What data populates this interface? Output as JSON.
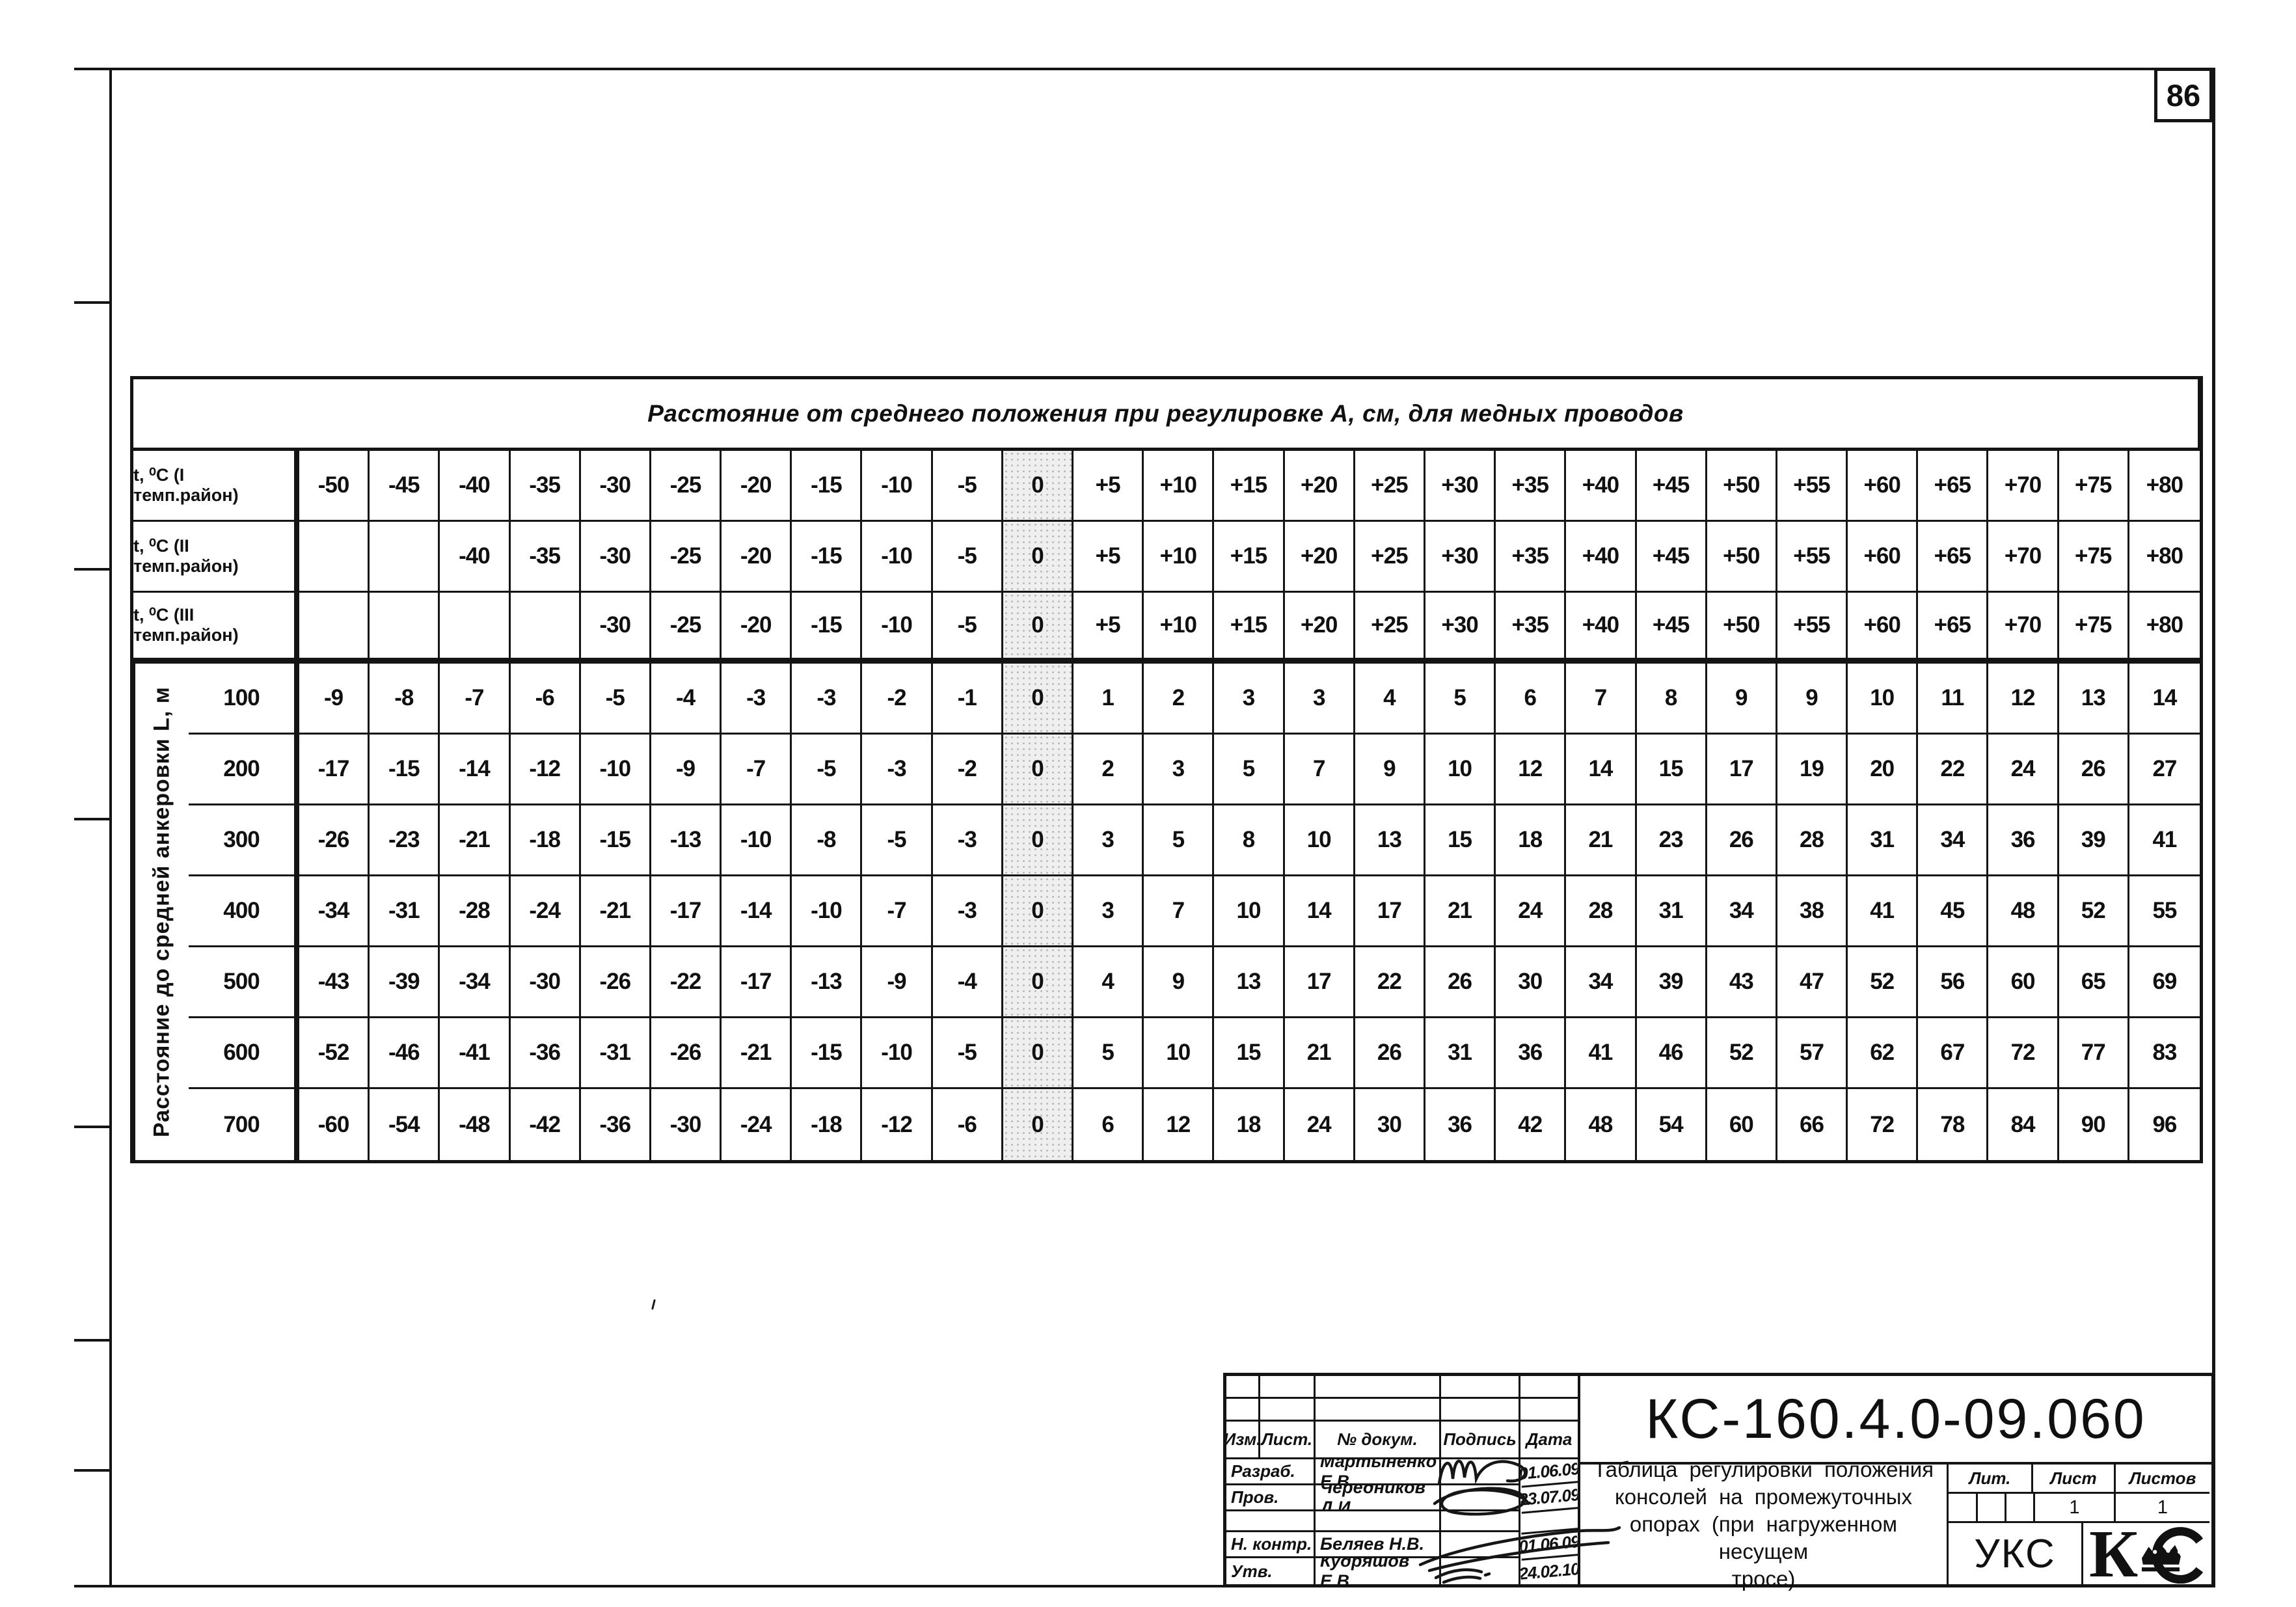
{
  "page": {
    "number": "86"
  },
  "table": {
    "title": "Расстояние от среднего положения при регулировке А, см, для медных проводов",
    "row_axis_label": "Расстояние до средней анкеровки L, м",
    "zero_column_index": 10,
    "header_rows": [
      {
        "label": "t, ⁰С (I темп.район)",
        "values": [
          "-50",
          "-45",
          "-40",
          "-35",
          "-30",
          "-25",
          "-20",
          "-15",
          "-10",
          "-5",
          "0",
          "+5",
          "+10",
          "+15",
          "+20",
          "+25",
          "+30",
          "+35",
          "+40",
          "+45",
          "+50",
          "+55",
          "+60",
          "+65",
          "+70",
          "+75",
          "+80"
        ]
      },
      {
        "label": "t, ⁰С (II темп.район)",
        "values": [
          "",
          "",
          "-40",
          "-35",
          "-30",
          "-25",
          "-20",
          "-15",
          "-10",
          "-5",
          "0",
          "+5",
          "+10",
          "+15",
          "+20",
          "+25",
          "+30",
          "+35",
          "+40",
          "+45",
          "+50",
          "+55",
          "+60",
          "+65",
          "+70",
          "+75",
          "+80"
        ]
      },
      {
        "label": "t, ⁰С (III темп.район)",
        "values": [
          "",
          "",
          "",
          "",
          "-30",
          "-25",
          "-20",
          "-15",
          "-10",
          "-5",
          "0",
          "+5",
          "+10",
          "+15",
          "+20",
          "+25",
          "+30",
          "+35",
          "+40",
          "+45",
          "+50",
          "+55",
          "+60",
          "+65",
          "+70",
          "+75",
          "+80"
        ]
      }
    ],
    "data_rows": [
      {
        "L": "100",
        "values": [
          "-9",
          "-8",
          "-7",
          "-6",
          "-5",
          "-4",
          "-3",
          "-3",
          "-2",
          "-1",
          "0",
          "1",
          "2",
          "3",
          "3",
          "4",
          "5",
          "6",
          "7",
          "8",
          "9",
          "9",
          "10",
          "11",
          "12",
          "13",
          "14"
        ]
      },
      {
        "L": "200",
        "values": [
          "-17",
          "-15",
          "-14",
          "-12",
          "-10",
          "-9",
          "-7",
          "-5",
          "-3",
          "-2",
          "0",
          "2",
          "3",
          "5",
          "7",
          "9",
          "10",
          "12",
          "14",
          "15",
          "17",
          "19",
          "20",
          "22",
          "24",
          "26",
          "27"
        ]
      },
      {
        "L": "300",
        "values": [
          "-26",
          "-23",
          "-21",
          "-18",
          "-15",
          "-13",
          "-10",
          "-8",
          "-5",
          "-3",
          "0",
          "3",
          "5",
          "8",
          "10",
          "13",
          "15",
          "18",
          "21",
          "23",
          "26",
          "28",
          "31",
          "34",
          "36",
          "39",
          "41"
        ]
      },
      {
        "L": "400",
        "values": [
          "-34",
          "-31",
          "-28",
          "-24",
          "-21",
          "-17",
          "-14",
          "-10",
          "-7",
          "-3",
          "0",
          "3",
          "7",
          "10",
          "14",
          "17",
          "21",
          "24",
          "28",
          "31",
          "34",
          "38",
          "41",
          "45",
          "48",
          "52",
          "55"
        ]
      },
      {
        "L": "500",
        "values": [
          "-43",
          "-39",
          "-34",
          "-30",
          "-26",
          "-22",
          "-17",
          "-13",
          "-9",
          "-4",
          "0",
          "4",
          "9",
          "13",
          "17",
          "22",
          "26",
          "30",
          "34",
          "39",
          "43",
          "47",
          "52",
          "56",
          "60",
          "65",
          "69"
        ]
      },
      {
        "L": "600",
        "values": [
          "-52",
          "-46",
          "-41",
          "-36",
          "-31",
          "-26",
          "-21",
          "-15",
          "-10",
          "-5",
          "0",
          "5",
          "10",
          "15",
          "21",
          "26",
          "31",
          "36",
          "41",
          "46",
          "52",
          "57",
          "62",
          "67",
          "72",
          "77",
          "83"
        ]
      },
      {
        "L": "700",
        "values": [
          "-60",
          "-54",
          "-48",
          "-42",
          "-36",
          "-30",
          "-24",
          "-18",
          "-12",
          "-6",
          "0",
          "6",
          "12",
          "18",
          "24",
          "30",
          "36",
          "42",
          "48",
          "54",
          "60",
          "66",
          "72",
          "78",
          "84",
          "90",
          "96"
        ]
      }
    ]
  },
  "title_block": {
    "doc_number": "КС-160.4.0-09.060",
    "title_lines": [
      "Таблица регулировки положения",
      "консолей на промежуточных",
      "опорах (при нагруженном несущем",
      "тросе)"
    ],
    "table_headers": [
      "Изм.",
      "Лист.",
      "№ докум.",
      "Подпись",
      "Дата"
    ],
    "signature_rows": [
      {
        "role": "Разраб.",
        "name": "Мартыненко Е.В.",
        "date": "01.06.09"
      },
      {
        "role": "Пров.",
        "name": "Чередников Д.И.",
        "date": "23.07.09"
      },
      {
        "role": "",
        "name": "",
        "date": ""
      },
      {
        "role": "Н. контр.",
        "name": "Беляев Н.В.",
        "date": "01.06.09"
      },
      {
        "role": "Утв.",
        "name": "Кудряшов Е.В.",
        "date": "24.02.10"
      }
    ],
    "lit_label": "Лит.",
    "sheet_label": "Лист",
    "sheets_label": "Листов",
    "sheet_value": "1",
    "sheets_value": "1",
    "department": "УКС"
  }
}
